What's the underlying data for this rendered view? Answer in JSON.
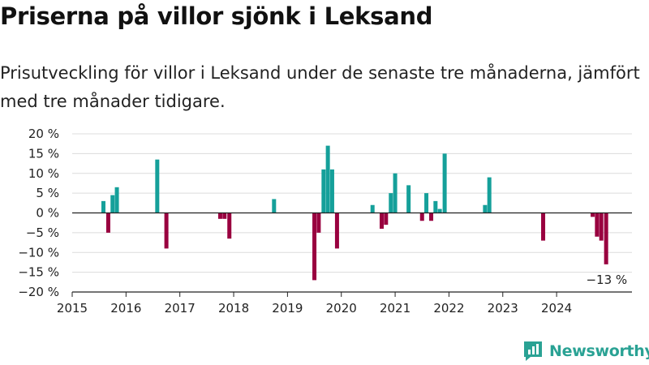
{
  "title": "Priserna på villor sjönk i Leksand",
  "subtitle": "Prisutveckling för villor i Leksand under de senaste tre månaderna, jämfört med tre månader tidigare.",
  "brand": {
    "name": "Newsworthy",
    "logo_icon": "newsworthy-logo-icon"
  },
  "colors": {
    "positive": "#15a09a",
    "negative": "#99003f",
    "axis": "#222222",
    "grid": "#dcdcdc"
  },
  "chart_data": {
    "type": "bar",
    "x_unit": "year (decimal)",
    "xlim": [
      2015.0,
      2025.4
    ],
    "ylim": [
      -20,
      20
    ],
    "grid": true,
    "y_ticks": [
      {
        "value": 20,
        "label": "20 %"
      },
      {
        "value": 15,
        "label": "15 %"
      },
      {
        "value": 10,
        "label": "10 %"
      },
      {
        "value": 5,
        "label": "5 %"
      },
      {
        "value": 0,
        "label": "0 %"
      },
      {
        "value": -5,
        "label": "−5 %"
      },
      {
        "value": -10,
        "label": "−10 %"
      },
      {
        "value": -15,
        "label": "−15 %"
      },
      {
        "value": -20,
        "label": "−20 %"
      }
    ],
    "x_ticks": [
      {
        "value": 2015,
        "label": "2015"
      },
      {
        "value": 2016,
        "label": "2016"
      },
      {
        "value": 2017,
        "label": "2017"
      },
      {
        "value": 2018,
        "label": "2018"
      },
      {
        "value": 2019,
        "label": "2019"
      },
      {
        "value": 2020,
        "label": "2020"
      },
      {
        "value": 2021,
        "label": "2021"
      },
      {
        "value": 2022,
        "label": "2022"
      },
      {
        "value": 2023,
        "label": "2023"
      },
      {
        "value": 2024,
        "label": "2024"
      }
    ],
    "points": [
      {
        "x": 2015.58,
        "y": 3
      },
      {
        "x": 2015.67,
        "y": -5
      },
      {
        "x": 2015.75,
        "y": 4.5
      },
      {
        "x": 2015.83,
        "y": 6.5
      },
      {
        "x": 2016.58,
        "y": 13.5
      },
      {
        "x": 2016.75,
        "y": -9
      },
      {
        "x": 2017.75,
        "y": -1.5
      },
      {
        "x": 2017.83,
        "y": -1.5
      },
      {
        "x": 2017.92,
        "y": -6.5
      },
      {
        "x": 2018.75,
        "y": 3.5
      },
      {
        "x": 2019.5,
        "y": -17
      },
      {
        "x": 2019.58,
        "y": -5
      },
      {
        "x": 2019.67,
        "y": 11
      },
      {
        "x": 2019.75,
        "y": 17
      },
      {
        "x": 2019.83,
        "y": 11
      },
      {
        "x": 2019.92,
        "y": -9
      },
      {
        "x": 2020.58,
        "y": 2
      },
      {
        "x": 2020.75,
        "y": -4
      },
      {
        "x": 2020.83,
        "y": -3
      },
      {
        "x": 2020.92,
        "y": 5
      },
      {
        "x": 2021.0,
        "y": 10
      },
      {
        "x": 2021.25,
        "y": 7
      },
      {
        "x": 2021.5,
        "y": -2
      },
      {
        "x": 2021.58,
        "y": 5
      },
      {
        "x": 2021.67,
        "y": -2
      },
      {
        "x": 2021.75,
        "y": 3
      },
      {
        "x": 2021.83,
        "y": 1
      },
      {
        "x": 2021.92,
        "y": 15
      },
      {
        "x": 2022.67,
        "y": 2
      },
      {
        "x": 2022.75,
        "y": 9
      },
      {
        "x": 2023.75,
        "y": -7
      },
      {
        "x": 2024.67,
        "y": -1
      },
      {
        "x": 2024.75,
        "y": -6
      },
      {
        "x": 2024.83,
        "y": -7
      },
      {
        "x": 2024.92,
        "y": -13
      }
    ],
    "annotation": {
      "text": "−13 %",
      "x": 2024.92,
      "y": -13
    }
  }
}
